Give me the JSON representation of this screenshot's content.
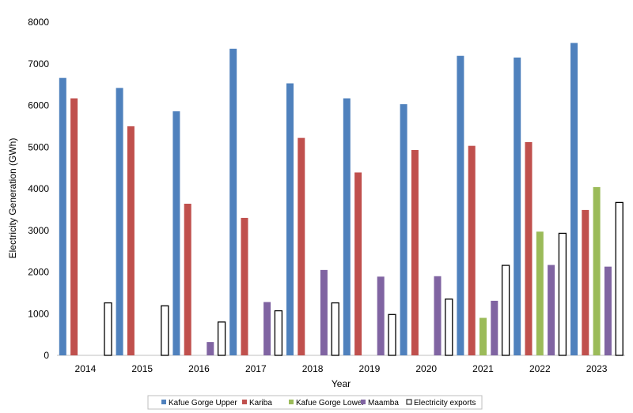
{
  "chart_data": {
    "type": "bar",
    "title": "",
    "xlabel": "Year",
    "ylabel": "Electricity Generation (GWh)",
    "ylim": [
      0,
      8000
    ],
    "yticks": [
      0,
      1000,
      2000,
      3000,
      4000,
      5000,
      6000,
      7000,
      8000
    ],
    "grid": false,
    "legend_position": "bottom",
    "categories": [
      "2014",
      "2015",
      "2016",
      "2017",
      "2018",
      "2019",
      "2020",
      "2021",
      "2022",
      "2023"
    ],
    "series": [
      {
        "name": "Kafue Gorge Upper",
        "color": "#4f81bd",
        "style": "filled",
        "values": [
          6660,
          6420,
          5860,
          7360,
          6530,
          6170,
          6030,
          7190,
          7150,
          7500
        ]
      },
      {
        "name": "Kariba",
        "color": "#c0504d",
        "style": "filled",
        "values": [
          6170,
          5500,
          3640,
          3300,
          5220,
          4390,
          4930,
          5030,
          5120,
          3490
        ]
      },
      {
        "name": "Kafue Gorge Lower",
        "color": "#9bbb59",
        "style": "filled",
        "values": [
          null,
          null,
          null,
          null,
          null,
          null,
          null,
          900,
          2970,
          4040
        ]
      },
      {
        "name": "Maamba",
        "color": "#8064a2",
        "style": "filled",
        "values": [
          null,
          null,
          320,
          1280,
          2050,
          1890,
          1900,
          1310,
          2170,
          2130
        ]
      },
      {
        "name": "Electricity exports",
        "color": "#000000",
        "style": "outline",
        "values": [
          1260,
          1190,
          800,
          1070,
          1260,
          980,
          1350,
          2160,
          2930,
          3670
        ]
      }
    ]
  }
}
